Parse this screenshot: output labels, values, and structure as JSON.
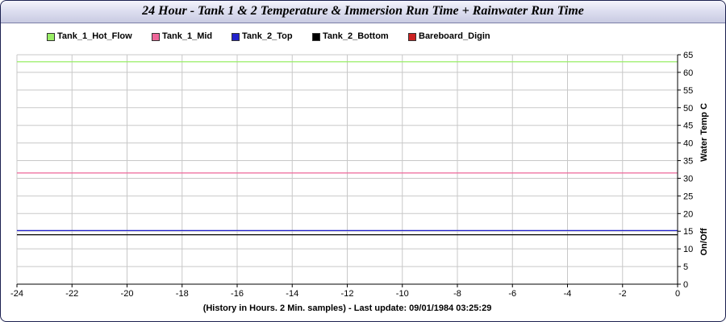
{
  "chart_data": {
    "type": "line",
    "title": "24 Hour - Tank 1 & 2 Temperature & Immersion Run Time + Rainwater Run Time",
    "xlabel": "(History in Hours. 2 Min. samples) - Last update: 09/01/1984 03:25:29",
    "ylabel": "Water Temp C",
    "ylabel2": "On/Off",
    "xlim": [
      -24,
      0
    ],
    "ylim": [
      0,
      65
    ],
    "x_ticks": [
      "-24",
      "-22",
      "-20",
      "-18",
      "-16",
      "-14",
      "-12",
      "-10",
      "-8",
      "-6",
      "-4",
      "-2",
      "0"
    ],
    "y_ticks": [
      "0",
      "5",
      "10",
      "15",
      "20",
      "25",
      "30",
      "35",
      "40",
      "45",
      "50",
      "55",
      "60",
      "65"
    ],
    "grid": true,
    "legend_position": "top-left",
    "series": [
      {
        "name": "Tank_1_Hot_Flow",
        "color": "#99ee66",
        "x": [
          -24,
          0
        ],
        "y": [
          63,
          63
        ]
      },
      {
        "name": "Tank_1_Mid",
        "color": "#ee6699",
        "x": [
          -24,
          0
        ],
        "y": [
          31.5,
          31.5
        ]
      },
      {
        "name": "Tank_2_Top",
        "color": "#2222cc",
        "x": [
          -24,
          0
        ],
        "y": [
          15.2,
          15.2
        ]
      },
      {
        "name": "Tank_2_Bottom",
        "color": "#000000",
        "x": [
          -24,
          0
        ],
        "y": [
          14,
          14
        ]
      },
      {
        "name": "Bareboard_Digin",
        "color": "#cc2222",
        "x": [],
        "y": []
      }
    ]
  }
}
